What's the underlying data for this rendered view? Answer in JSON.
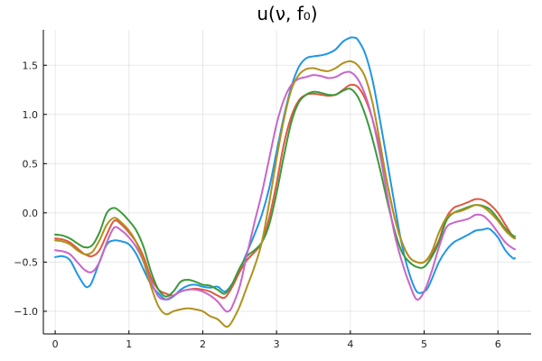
{
  "chart_data": {
    "type": "line",
    "title": "u(ν, f₀)",
    "xlabel": "",
    "ylabel": "",
    "xlim": [
      -0.16,
      6.45
    ],
    "ylim": [
      -1.23,
      1.86
    ],
    "x_ticks": [
      0,
      1,
      2,
      3,
      4,
      5,
      6
    ],
    "x_tick_labels": [
      "0",
      "1",
      "2",
      "3",
      "4",
      "5",
      "6"
    ],
    "y_ticks": [
      -1.0,
      -0.5,
      0.0,
      0.5,
      1.0,
      1.5
    ],
    "y_tick_labels": [
      "−1.0",
      "−0.5",
      "0.0",
      "0.5",
      "1.0",
      "1.5"
    ],
    "grid": true,
    "legend": "none",
    "series": [
      {
        "color": "#1f96e6",
        "x": [
          0,
          0.1,
          0.2,
          0.3,
          0.4,
          0.45,
          0.5,
          0.6,
          0.7,
          0.8,
          0.9,
          1.0,
          1.1,
          1.2,
          1.3,
          1.4,
          1.5,
          1.6,
          1.7,
          1.8,
          1.9,
          2.0,
          2.1,
          2.2,
          2.3,
          2.4,
          2.5,
          2.6,
          2.7,
          2.8,
          2.9,
          3.0,
          3.1,
          3.2,
          3.3,
          3.4,
          3.5,
          3.6,
          3.7,
          3.8,
          3.9,
          4.0,
          4.05,
          4.1,
          4.2,
          4.3,
          4.4,
          4.5,
          4.6,
          4.7,
          4.8,
          4.9,
          5.0,
          5.05,
          5.1,
          5.2,
          5.3,
          5.4,
          5.5,
          5.6,
          5.7,
          5.8,
          5.85,
          5.9,
          6.0,
          6.1,
          6.2,
          6.23
        ],
        "y": [
          -0.45,
          -0.44,
          -0.48,
          -0.62,
          -0.74,
          -0.75,
          -0.7,
          -0.5,
          -0.32,
          -0.28,
          -0.29,
          -0.32,
          -0.42,
          -0.58,
          -0.73,
          -0.82,
          -0.88,
          -0.85,
          -0.78,
          -0.74,
          -0.73,
          -0.75,
          -0.76,
          -0.75,
          -0.8,
          -0.72,
          -0.58,
          -0.4,
          -0.22,
          -0.02,
          0.25,
          0.62,
          0.98,
          1.28,
          1.48,
          1.57,
          1.59,
          1.6,
          1.62,
          1.66,
          1.74,
          1.78,
          1.78,
          1.76,
          1.62,
          1.35,
          0.95,
          0.52,
          0.08,
          -0.33,
          -0.62,
          -0.8,
          -0.8,
          -0.76,
          -0.68,
          -0.5,
          -0.38,
          -0.3,
          -0.26,
          -0.22,
          -0.18,
          -0.17,
          -0.16,
          -0.17,
          -0.25,
          -0.38,
          -0.46,
          -0.46
        ]
      },
      {
        "color": "#e0583f",
        "x": [
          0,
          0.1,
          0.2,
          0.3,
          0.4,
          0.5,
          0.6,
          0.7,
          0.8,
          0.9,
          1.0,
          1.1,
          1.2,
          1.3,
          1.4,
          1.5,
          1.6,
          1.7,
          1.8,
          1.9,
          2.0,
          2.1,
          2.2,
          2.3,
          2.4,
          2.5,
          2.6,
          2.7,
          2.8,
          2.9,
          3.0,
          3.1,
          3.2,
          3.3,
          3.4,
          3.5,
          3.6,
          3.7,
          3.8,
          3.9,
          4.0,
          4.1,
          4.2,
          4.3,
          4.4,
          4.5,
          4.6,
          4.7,
          4.8,
          4.9,
          5.0,
          5.1,
          5.2,
          5.3,
          5.4,
          5.5,
          5.6,
          5.7,
          5.8,
          5.9,
          6.0,
          6.1,
          6.2,
          6.23
        ],
        "y": [
          -0.26,
          -0.27,
          -0.3,
          -0.36,
          -0.42,
          -0.44,
          -0.38,
          -0.22,
          -0.08,
          -0.12,
          -0.2,
          -0.3,
          -0.45,
          -0.66,
          -0.78,
          -0.82,
          -0.84,
          -0.8,
          -0.78,
          -0.77,
          -0.78,
          -0.8,
          -0.84,
          -0.86,
          -0.75,
          -0.6,
          -0.48,
          -0.4,
          -0.3,
          -0.05,
          0.3,
          0.7,
          0.98,
          1.14,
          1.2,
          1.21,
          1.2,
          1.19,
          1.2,
          1.25,
          1.3,
          1.28,
          1.16,
          0.95,
          0.65,
          0.3,
          -0.05,
          -0.3,
          -0.45,
          -0.5,
          -0.5,
          -0.42,
          -0.28,
          -0.05,
          0.05,
          0.08,
          0.11,
          0.14,
          0.13,
          0.08,
          0.0,
          -0.12,
          -0.24,
          -0.26
        ]
      },
      {
        "color": "#3a9a3a",
        "x": [
          0,
          0.1,
          0.2,
          0.3,
          0.4,
          0.5,
          0.6,
          0.7,
          0.8,
          0.9,
          1.0,
          1.1,
          1.2,
          1.3,
          1.4,
          1.5,
          1.6,
          1.7,
          1.8,
          1.9,
          2.0,
          2.1,
          2.2,
          2.3,
          2.4,
          2.5,
          2.6,
          2.7,
          2.8,
          2.9,
          3.0,
          3.1,
          3.2,
          3.3,
          3.4,
          3.5,
          3.6,
          3.7,
          3.8,
          3.9,
          4.0,
          4.1,
          4.2,
          4.3,
          4.4,
          4.5,
          4.6,
          4.7,
          4.8,
          4.9,
          5.0,
          5.1,
          5.2,
          5.3,
          5.4,
          5.5,
          5.6,
          5.7,
          5.8,
          5.9,
          6.0,
          6.1,
          6.2,
          6.23
        ],
        "y": [
          -0.22,
          -0.23,
          -0.26,
          -0.31,
          -0.35,
          -0.33,
          -0.2,
          0.0,
          0.05,
          0.0,
          -0.08,
          -0.18,
          -0.35,
          -0.6,
          -0.78,
          -0.85,
          -0.8,
          -0.7,
          -0.68,
          -0.7,
          -0.73,
          -0.74,
          -0.78,
          -0.82,
          -0.72,
          -0.56,
          -0.44,
          -0.38,
          -0.3,
          -0.12,
          0.2,
          0.58,
          0.92,
          1.12,
          1.2,
          1.23,
          1.22,
          1.2,
          1.2,
          1.24,
          1.26,
          1.18,
          1.0,
          0.75,
          0.45,
          0.12,
          -0.18,
          -0.4,
          -0.5,
          -0.55,
          -0.55,
          -0.45,
          -0.3,
          -0.08,
          0.0,
          0.03,
          0.06,
          0.08,
          0.07,
          0.03,
          -0.06,
          -0.16,
          -0.23,
          -0.24
        ]
      },
      {
        "color": "#c866c8",
        "x": [
          0,
          0.1,
          0.2,
          0.3,
          0.4,
          0.5,
          0.6,
          0.7,
          0.8,
          0.9,
          1.0,
          1.1,
          1.2,
          1.3,
          1.4,
          1.5,
          1.6,
          1.7,
          1.8,
          1.9,
          2.0,
          2.1,
          2.2,
          2.3,
          2.35,
          2.4,
          2.5,
          2.6,
          2.7,
          2.8,
          2.9,
          3.0,
          3.1,
          3.2,
          3.3,
          3.4,
          3.5,
          3.6,
          3.7,
          3.8,
          3.9,
          4.0,
          4.1,
          4.2,
          4.3,
          4.4,
          4.5,
          4.6,
          4.7,
          4.8,
          4.9,
          5.0,
          5.1,
          5.2,
          5.3,
          5.4,
          5.5,
          5.6,
          5.7,
          5.8,
          5.9,
          6.0,
          6.1,
          6.2,
          6.23
        ],
        "y": [
          -0.38,
          -0.39,
          -0.42,
          -0.5,
          -0.58,
          -0.6,
          -0.5,
          -0.3,
          -0.15,
          -0.18,
          -0.25,
          -0.35,
          -0.5,
          -0.7,
          -0.85,
          -0.88,
          -0.84,
          -0.8,
          -0.78,
          -0.78,
          -0.8,
          -0.84,
          -0.9,
          -0.99,
          -1.0,
          -0.95,
          -0.75,
          -0.42,
          -0.1,
          0.2,
          0.55,
          0.9,
          1.15,
          1.3,
          1.36,
          1.38,
          1.4,
          1.39,
          1.37,
          1.38,
          1.42,
          1.43,
          1.36,
          1.2,
          0.95,
          0.6,
          0.18,
          -0.22,
          -0.5,
          -0.72,
          -0.88,
          -0.8,
          -0.6,
          -0.35,
          -0.15,
          -0.1,
          -0.08,
          -0.06,
          -0.02,
          -0.03,
          -0.1,
          -0.2,
          -0.3,
          -0.36,
          -0.37
        ]
      },
      {
        "color": "#b0911c",
        "x": [
          0,
          0.1,
          0.2,
          0.3,
          0.4,
          0.5,
          0.6,
          0.7,
          0.8,
          0.9,
          1.0,
          1.1,
          1.2,
          1.3,
          1.4,
          1.5,
          1.6,
          1.7,
          1.8,
          1.9,
          2.0,
          2.1,
          2.2,
          2.3,
          2.35,
          2.4,
          2.5,
          2.6,
          2.7,
          2.8,
          2.9,
          3.0,
          3.1,
          3.2,
          3.3,
          3.4,
          3.5,
          3.6,
          3.7,
          3.8,
          3.9,
          4.0,
          4.1,
          4.2,
          4.3,
          4.4,
          4.5,
          4.6,
          4.7,
          4.8,
          4.9,
          5.0,
          5.1,
          5.2,
          5.3,
          5.4,
          5.5,
          5.6,
          5.7,
          5.8,
          5.9,
          6.0,
          6.1,
          6.2,
          6.23
        ],
        "y": [
          -0.28,
          -0.29,
          -0.32,
          -0.38,
          -0.42,
          -0.4,
          -0.28,
          -0.12,
          -0.05,
          -0.1,
          -0.18,
          -0.3,
          -0.5,
          -0.75,
          -0.95,
          -1.03,
          -1.0,
          -0.98,
          -0.97,
          -0.98,
          -1.0,
          -1.05,
          -1.08,
          -1.15,
          -1.15,
          -1.1,
          -0.95,
          -0.75,
          -0.55,
          -0.3,
          0.1,
          0.55,
          0.95,
          1.25,
          1.4,
          1.46,
          1.47,
          1.45,
          1.44,
          1.47,
          1.52,
          1.54,
          1.5,
          1.38,
          1.12,
          0.72,
          0.3,
          -0.05,
          -0.3,
          -0.45,
          -0.5,
          -0.5,
          -0.4,
          -0.2,
          -0.05,
          0.0,
          0.02,
          0.05,
          0.08,
          0.06,
          0.0,
          -0.08,
          -0.18,
          -0.25,
          -0.26
        ]
      }
    ]
  }
}
